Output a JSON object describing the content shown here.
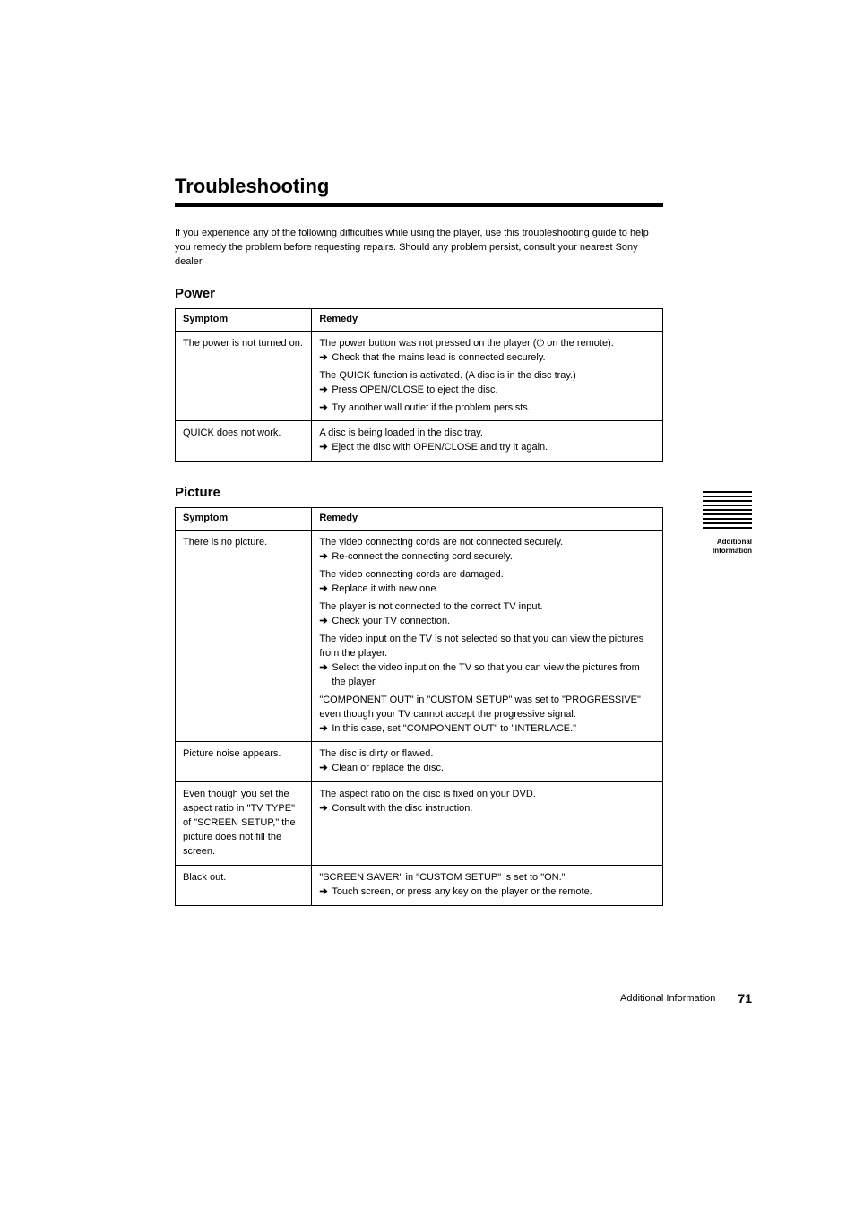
{
  "title": "Troubleshooting",
  "intro": "If you experience any of the following difficulties while using the player, use this troubleshooting guide to help you remedy the problem before requesting repairs. Should any problem persist, consult your nearest Sony dealer.",
  "sections": [
    {
      "heading": "Power",
      "columns": [
        "Symptom",
        "Remedy"
      ],
      "rows": [
        {
          "symptom": "The power is not turned on.",
          "remedies": [
            {
              "lead": "The power button was not pressed on the player ([power-icon] on the remote).",
              "action": "Check that the mains lead is connected securely."
            },
            {
              "lead": "The QUICK function is activated. (A disc is in the disc tray.)",
              "action": "Press OPEN/CLOSE to eject the disc."
            },
            {
              "lead": null,
              "action": "Try another wall outlet if the problem persists."
            }
          ]
        },
        {
          "symptom": "QUICK does not work.",
          "remedies": [
            {
              "lead": "A disc is being loaded in the disc tray.",
              "action": "Eject the disc with OPEN/CLOSE and try it again."
            }
          ]
        }
      ]
    },
    {
      "heading": "Picture",
      "columns": [
        "Symptom",
        "Remedy"
      ],
      "rows": [
        {
          "symptom": "There is no picture.",
          "remedies": [
            {
              "lead": "The video connecting cords are not connected securely.",
              "action": "Re-connect the connecting cord securely."
            },
            {
              "lead": "The video connecting cords are damaged.",
              "action": "Replace it with new one."
            },
            {
              "lead": "The player is not connected to the correct TV input.",
              "action": "Check your TV connection."
            },
            {
              "lead": "The video input on the TV is not selected so that you can view the pictures from the player.",
              "action": "Select the video input on the TV so that you can view the pictures from the player."
            },
            {
              "lead": "\"COMPONENT OUT\" in \"CUSTOM SETUP\" was set to \"PROGRESSIVE\" even though your TV cannot accept the progressive signal.",
              "action": "In this case, set \"COMPONENT OUT\" to \"INTERLACE.\""
            }
          ]
        },
        {
          "symptom": "Picture noise appears.",
          "remedies": [
            {
              "lead": "The disc is dirty or flawed.",
              "action": "Clean or replace the disc."
            }
          ]
        },
        {
          "symptom": "Even though you set the aspect ratio in \"TV TYPE\" of \"SCREEN SETUP,\" the picture does not fill the screen.",
          "remedies": [
            {
              "lead": "The aspect ratio on the disc is fixed on your DVD.",
              "action": "Consult with the disc instruction."
            }
          ]
        },
        {
          "symptom": "Black out.",
          "remedies": [
            {
              "lead": "\"SCREEN SAVER\" in \"CUSTOM SETUP\" is set to \"ON.\"",
              "action": "Touch screen, or press any key on the player or the remote."
            }
          ]
        }
      ]
    }
  ],
  "sideLabel": "Additional Information",
  "footer": {
    "text": "Additional Information",
    "page": "71"
  },
  "glyphs": {
    "arrow": "➔",
    "power": "⏻"
  },
  "colors": {
    "text": "#000000",
    "bg": "#ffffff"
  }
}
